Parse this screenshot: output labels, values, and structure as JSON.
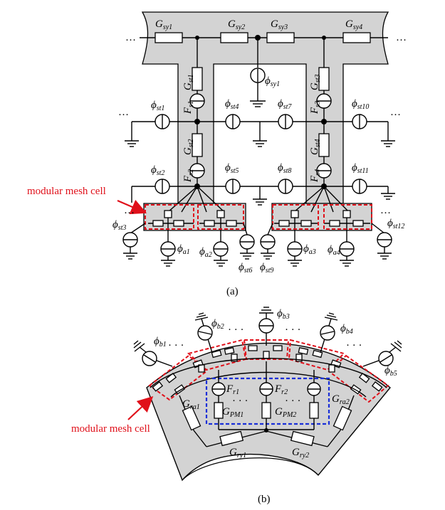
{
  "figure_a": {
    "caption": "(a)",
    "stator_yoke": [
      {
        "base": "G",
        "sub": "sy1"
      },
      {
        "base": "G",
        "sub": "sy2"
      },
      {
        "base": "G",
        "sub": "sy3"
      },
      {
        "base": "G",
        "sub": "sy4"
      }
    ],
    "stator_tooth": [
      {
        "base": "G",
        "sub": "st1"
      },
      {
        "base": "G",
        "sub": "st2"
      },
      {
        "base": "G",
        "sub": "st3"
      },
      {
        "base": "G",
        "sub": "st4"
      }
    ],
    "mmf": [
      {
        "base": "F",
        "sub": "s1"
      },
      {
        "base": "F",
        "sub": "s2"
      },
      {
        "base": "F",
        "sub": "s3"
      },
      {
        "base": "F",
        "sub": "s4"
      }
    ],
    "flux": {
      "sy1": {
        "base": "ϕ",
        "sub": "sy1"
      },
      "st1": {
        "base": "ϕ",
        "sub": "st1"
      },
      "st2": {
        "base": "ϕ",
        "sub": "st2"
      },
      "st3": {
        "base": "ϕ",
        "sub": "st3"
      },
      "st4": {
        "base": "ϕ",
        "sub": "st4"
      },
      "st5": {
        "base": "ϕ",
        "sub": "st5"
      },
      "st6": {
        "base": "ϕ",
        "sub": "st6"
      },
      "st7": {
        "base": "ϕ",
        "sub": "st7"
      },
      "st8": {
        "base": "ϕ",
        "sub": "st8"
      },
      "st9": {
        "base": "ϕ",
        "sub": "st9"
      },
      "st10": {
        "base": "ϕ",
        "sub": "st10"
      },
      "st11": {
        "base": "ϕ",
        "sub": "st11"
      },
      "st12": {
        "base": "ϕ",
        "sub": "st12"
      },
      "a1": {
        "base": "ϕ",
        "sub": "a1"
      },
      "a2": {
        "base": "ϕ",
        "sub": "a2"
      },
      "a3": {
        "base": "ϕ",
        "sub": "a3"
      },
      "a4": {
        "base": "ϕ",
        "sub": "a4"
      }
    },
    "callout": "modular mesh cell",
    "ellipsis": "…"
  },
  "figure_b": {
    "caption": "(b)",
    "flux": [
      {
        "base": "ϕ",
        "sub": "b1"
      },
      {
        "base": "ϕ",
        "sub": "b2"
      },
      {
        "base": "ϕ",
        "sub": "b3"
      },
      {
        "base": "ϕ",
        "sub": "b4"
      },
      {
        "base": "ϕ",
        "sub": "b5"
      }
    ],
    "mmf": [
      {
        "base": "F",
        "sub": "r1"
      },
      {
        "base": "F",
        "sub": "r2"
      }
    ],
    "pm": [
      {
        "base": "G",
        "sub": "PM1"
      },
      {
        "base": "G",
        "sub": "PM2"
      }
    ],
    "rotor_a": [
      {
        "base": "G",
        "sub": "ra1"
      },
      {
        "base": "G",
        "sub": "ra2"
      }
    ],
    "rotor_y": [
      {
        "base": "G",
        "sub": "ry1"
      },
      {
        "base": "G",
        "sub": "ry2"
      }
    ],
    "callout": "modular mesh cell",
    "dots": "· · ·"
  },
  "colors": {
    "iron": "#d3d3d3",
    "callout_red": "#e0101a",
    "pm_blue": "#1a2fd8",
    "wire": "#000000"
  }
}
